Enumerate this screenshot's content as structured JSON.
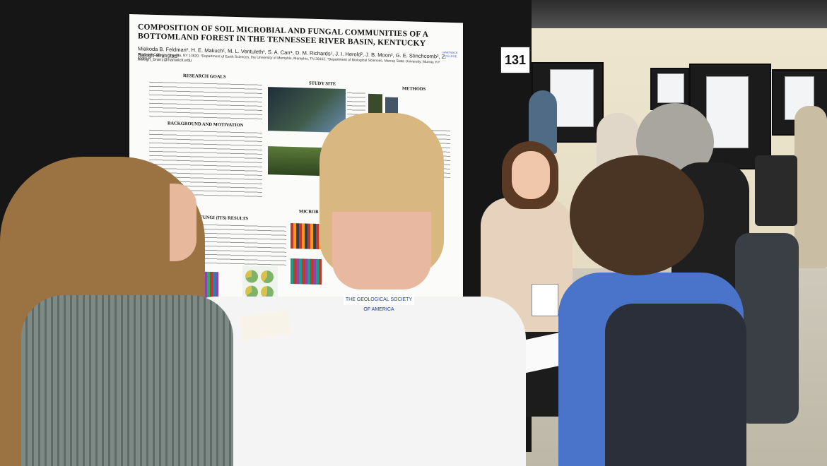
{
  "poster": {
    "title": "COMPOSITION OF SOIL MICROBIAL AND FUNGAL COMMUNITIES OF A BOTTOMLAND FOREST IN THE TENNESSEE RIVER BASIN, KENTUCKY",
    "authors": "Miakoda B. Feldman¹, H. E. Makuch¹, M. L. Ventuleth¹, S. A. Carr¹, D. M. Richards¹, J. I. Herold², J. B. Moon³, G. E. Stinchcomb², Z. Balogh-Brunstad¹",
    "affiliations": "¹Hartwick College, Oneonta, NY 13820, ²Department of Earth Sciences, the University of Memphis, Memphis, TN 38152, ³Department of Biological Sciences, Murray State University, Murray, KY 42071",
    "email": "balogh_brunz@hartwick.edu",
    "sections": {
      "research_goals": "RESEARCH GOALS",
      "background": "BACKGROUND AND MOTIVATION",
      "study_site": "STUDY SITE",
      "methods": "METHODS",
      "fungi_results": "FUNGI (ITS) RESULTS",
      "microbial": "MICROB"
    },
    "logo_text": "HARTWICK COLLEGE",
    "number": "131"
  },
  "badge": {
    "lanyard_text": "THE GEOLOGICAL SOCIETY OF AMERICA"
  },
  "colors": {
    "board": "#161616",
    "poster": "#fbfbfa",
    "blue_shirt": "#4a74c9",
    "white_shirt": "#f4f4f4"
  }
}
